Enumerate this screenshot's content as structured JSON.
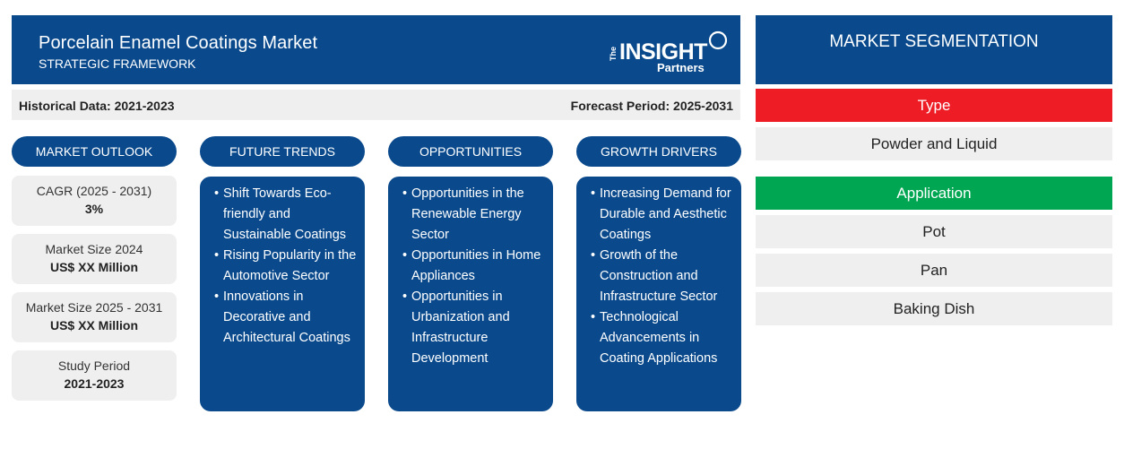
{
  "header": {
    "title": "Porcelain Enamel Coatings Market",
    "subtitle": "STRATEGIC FRAMEWORK",
    "logo": {
      "the": "The",
      "main": "INSIGHT",
      "sub": "Partners"
    }
  },
  "periods": {
    "historical": "Historical Data: 2021-2023",
    "forecast": "Forecast Period: 2025-2031"
  },
  "columns": {
    "outlook": "MARKET OUTLOOK",
    "trends": "FUTURE TRENDS",
    "opportunities": "OPPORTUNITIES",
    "drivers": "GROWTH DRIVERS"
  },
  "outlook": [
    {
      "label": "CAGR (2025 - 2031)",
      "value": "3%"
    },
    {
      "label": "Market Size 2024",
      "value": "US$ XX Million"
    },
    {
      "label": "Market Size 2025 - 2031",
      "value": "US$ XX Million"
    },
    {
      "label": "Study Period",
      "value": "2021-2023"
    }
  ],
  "trends": [
    "Shift Towards Eco-friendly and Sustainable Coatings",
    "Rising Popularity in the Automotive Sector",
    "Innovations in Decorative and Architectural Coatings"
  ],
  "opportunities": [
    "Opportunities in the Renewable Energy Sector",
    "Opportunities in Home Appliances",
    "Opportunities in Urbanization and Infrastructure Development"
  ],
  "drivers": [
    "Increasing Demand for Durable and Aesthetic Coatings",
    "Growth of the Construction and Infrastructure Sector",
    "Technological Advancements in Coating Applications"
  ],
  "segmentation": {
    "title": "MARKET SEGMENTATION",
    "type_label": "Type",
    "type_items": [
      "Powder and Liquid"
    ],
    "application_label": "Application",
    "application_items": [
      "Pot",
      "Pan",
      "Baking Dish"
    ]
  },
  "colors": {
    "navy": "#0a4a8c",
    "type_red": "#ee1c25",
    "application_green": "#00a651",
    "light_gray": "#efefef"
  }
}
